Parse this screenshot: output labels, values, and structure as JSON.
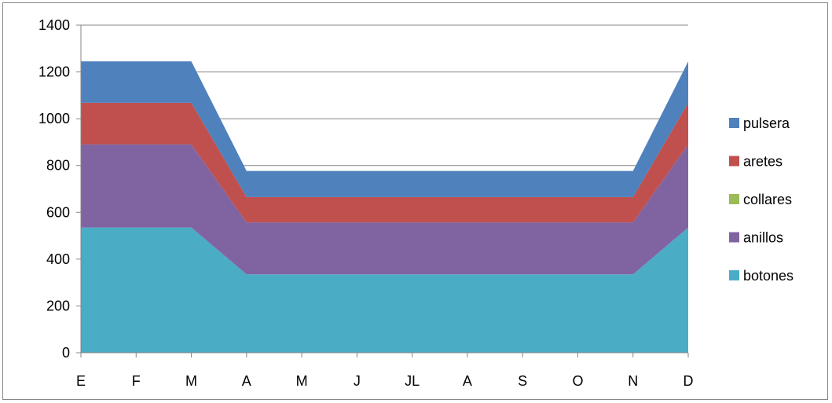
{
  "chart_data": {
    "type": "area",
    "stacked": true,
    "categories": [
      "E",
      "F",
      "M",
      "A",
      "M",
      "J",
      "JL",
      "A",
      "S",
      "O",
      "N",
      "D"
    ],
    "ylim": [
      0,
      1400
    ],
    "yticks": [
      "0",
      "200",
      "400",
      "600",
      "800",
      "1000",
      "1200",
      "1400"
    ],
    "grid": true,
    "legend_position": "right",
    "series": [
      {
        "name": "botones",
        "color": "#4BACC6",
        "values": [
          535,
          535,
          535,
          335,
          335,
          335,
          335,
          335,
          335,
          335,
          335,
          535
        ]
      },
      {
        "name": "anillos",
        "color": "#8064A2",
        "values": [
          355,
          355,
          355,
          222,
          222,
          222,
          222,
          222,
          222,
          222,
          222,
          355
        ]
      },
      {
        "name": "collares",
        "color": "#9BBB59",
        "values": [
          0,
          0,
          0,
          0,
          0,
          0,
          0,
          0,
          0,
          0,
          0,
          0
        ]
      },
      {
        "name": "aretes",
        "color": "#C0504D",
        "values": [
          178,
          178,
          178,
          108,
          108,
          108,
          108,
          108,
          108,
          108,
          108,
          178
        ]
      },
      {
        "name": "pulsera",
        "color": "#4F81BD",
        "values": [
          177,
          177,
          177,
          112,
          112,
          112,
          112,
          112,
          112,
          112,
          112,
          177
        ]
      }
    ]
  }
}
